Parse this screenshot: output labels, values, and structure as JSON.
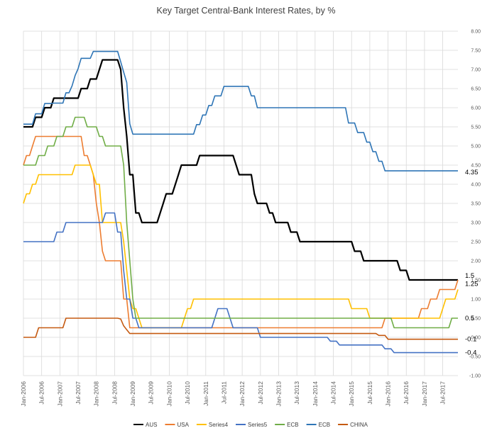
{
  "chart_data": {
    "type": "line",
    "title": "Key Target Central-Bank Interest Rates, by %",
    "xlabel": "",
    "ylabel": "",
    "x_range": [
      "Jan-2006",
      "Dec-2017"
    ],
    "ylim": [
      -1.0,
      8.0
    ],
    "y_ticks": [
      "-1.00",
      "-0.50",
      "0.00",
      "0.50",
      "1.00",
      "1.50",
      "2.00",
      "2.50",
      "3.00",
      "3.50",
      "4.00",
      "4.50",
      "5.00",
      "5.50",
      "6.00",
      "6.50",
      "7.00",
      "7.50",
      "8.00"
    ],
    "x_ticks": [
      "Jan-2006",
      "Jul-2006",
      "Jan-2007",
      "Jul-2007",
      "Jan-2008",
      "Jul-2008",
      "Jan-2009",
      "Jul-2009",
      "Jan-2010",
      "Jul-2010",
      "Jan-2011",
      "Jul-2011",
      "Jan-2012",
      "Jul-2012",
      "Jan-2013",
      "Jul-2013",
      "Jan-2014",
      "Jul-2014",
      "Jan-2015",
      "Jul-2015",
      "Jan-2016",
      "Jul-2016",
      "Jan-2017",
      "Jul-2017"
    ],
    "grid": true,
    "legend_position": "bottom",
    "series": [
      {
        "name": "AUS",
        "color": "#000000",
        "width": 2.2,
        "end_label": "1.5",
        "steps": [
          [
            "2006-01",
            5.5
          ],
          [
            "2006-05",
            5.75
          ],
          [
            "2006-08",
            6.0
          ],
          [
            "2006-11",
            6.25
          ],
          [
            "2007-08",
            6.5
          ],
          [
            "2007-11",
            6.75
          ],
          [
            "2008-02",
            7.0
          ],
          [
            "2008-03",
            7.25
          ],
          [
            "2008-09",
            7.0
          ],
          [
            "2008-10",
            6.0
          ],
          [
            "2008-11",
            5.25
          ],
          [
            "2008-12",
            4.25
          ],
          [
            "2009-02",
            3.25
          ],
          [
            "2009-04",
            3.0
          ],
          [
            "2009-10",
            3.25
          ],
          [
            "2009-11",
            3.5
          ],
          [
            "2009-12",
            3.75
          ],
          [
            "2010-03",
            4.0
          ],
          [
            "2010-04",
            4.25
          ],
          [
            "2010-05",
            4.5
          ],
          [
            "2010-11",
            4.75
          ],
          [
            "2011-11",
            4.5
          ],
          [
            "2011-12",
            4.25
          ],
          [
            "2012-05",
            3.75
          ],
          [
            "2012-06",
            3.5
          ],
          [
            "2012-10",
            3.25
          ],
          [
            "2012-12",
            3.0
          ],
          [
            "2013-05",
            2.75
          ],
          [
            "2013-08",
            2.5
          ],
          [
            "2015-02",
            2.25
          ],
          [
            "2015-05",
            2.0
          ],
          [
            "2016-05",
            1.75
          ],
          [
            "2016-08",
            1.5
          ]
        ]
      },
      {
        "name": "USA",
        "color": "#ed7d31",
        "width": 1.6,
        "end_label": "",
        "steps": [
          [
            "2006-01",
            4.5
          ],
          [
            "2006-02",
            4.75
          ],
          [
            "2006-04",
            5.0
          ],
          [
            "2006-05",
            5.25
          ],
          [
            "2007-09",
            4.75
          ],
          [
            "2007-11",
            4.5
          ],
          [
            "2007-12",
            4.25
          ],
          [
            "2008-01",
            3.5
          ],
          [
            "2008-02",
            3.0
          ],
          [
            "2008-03",
            2.25
          ],
          [
            "2008-04",
            2.0
          ],
          [
            "2008-10",
            1.0
          ],
          [
            "2008-12",
            0.25
          ],
          [
            "2015-12",
            0.5
          ],
          [
            "2016-12",
            0.75
          ],
          [
            "2017-03",
            1.0
          ],
          [
            "2017-06",
            1.25
          ],
          [
            "2017-12",
            1.5
          ]
        ]
      },
      {
        "name": "Series4",
        "color": "#ffc000",
        "width": 1.6,
        "end_label": "1.25",
        "steps": [
          [
            "2006-01",
            3.5
          ],
          [
            "2006-02",
            3.75
          ],
          [
            "2006-04",
            4.0
          ],
          [
            "2006-06",
            4.25
          ],
          [
            "2007-06",
            4.5
          ],
          [
            "2007-12",
            4.25
          ],
          [
            "2008-01",
            4.0
          ],
          [
            "2008-03",
            3.0
          ],
          [
            "2008-10",
            2.5
          ],
          [
            "2008-11",
            1.75
          ],
          [
            "2008-12",
            1.0
          ],
          [
            "2009-01",
            0.75
          ],
          [
            "2009-03",
            0.5
          ],
          [
            "2009-04",
            0.25
          ],
          [
            "2010-06",
            0.5
          ],
          [
            "2010-07",
            0.75
          ],
          [
            "2010-09",
            1.0
          ],
          [
            "2015-01",
            0.75
          ],
          [
            "2015-07",
            0.5
          ],
          [
            "2017-07",
            0.75
          ],
          [
            "2017-08",
            1.0
          ],
          [
            "2017-11",
            1.0
          ],
          [
            "2017-12",
            1.25
          ]
        ]
      },
      {
        "name": "Series5",
        "color": "#4472c4",
        "width": 1.6,
        "end_label": "-0.4",
        "steps": [
          [
            "2006-01",
            2.5
          ],
          [
            "2006-12",
            2.75
          ],
          [
            "2007-03",
            3.0
          ],
          [
            "2008-04",
            3.25
          ],
          [
            "2008-08",
            2.75
          ],
          [
            "2008-10",
            1.75
          ],
          [
            "2008-11",
            1.0
          ],
          [
            "2009-01",
            0.5
          ],
          [
            "2009-03",
            0.25
          ],
          [
            "2011-04",
            0.5
          ],
          [
            "2011-05",
            0.75
          ],
          [
            "2011-09",
            0.5
          ],
          [
            "2011-10",
            0.25
          ],
          [
            "2012-07",
            0.0
          ],
          [
            "2014-06",
            -0.1
          ],
          [
            "2014-09",
            -0.2
          ],
          [
            "2015-12",
            -0.3
          ],
          [
            "2016-03",
            -0.4
          ]
        ]
      },
      {
        "name": "ECB",
        "color": "#70ad47",
        "width": 1.6,
        "end_label": "0.5",
        "steps": [
          [
            "2006-01",
            4.5
          ],
          [
            "2006-06",
            4.75
          ],
          [
            "2006-09",
            5.0
          ],
          [
            "2006-12",
            5.25
          ],
          [
            "2007-03",
            5.5
          ],
          [
            "2007-06",
            5.75
          ],
          [
            "2007-10",
            5.5
          ],
          [
            "2008-02",
            5.25
          ],
          [
            "2008-04",
            5.0
          ],
          [
            "2008-10",
            4.5
          ],
          [
            "2008-11",
            3.0
          ],
          [
            "2008-12",
            2.0
          ],
          [
            "2009-01",
            1.0
          ],
          [
            "2009-02",
            0.5
          ],
          [
            "2016-03",
            0.25
          ],
          [
            "2017-10",
            0.5
          ]
        ]
      },
      {
        "name": "ECB",
        "color": "#2e75b6",
        "width": 1.6,
        "end_label": "4.35",
        "steps": [
          [
            "2006-01",
            5.57
          ],
          [
            "2006-05",
            5.84
          ],
          [
            "2006-08",
            6.11
          ],
          [
            "2006-11",
            6.12
          ],
          [
            "2007-03",
            6.39
          ],
          [
            "2007-05",
            6.57
          ],
          [
            "2007-06",
            6.84
          ],
          [
            "2007-07",
            7.02
          ],
          [
            "2007-08",
            7.29
          ],
          [
            "2007-12",
            7.47
          ],
          [
            "2008-09",
            7.2
          ],
          [
            "2008-10",
            6.93
          ],
          [
            "2008-11",
            6.66
          ],
          [
            "2008-12",
            5.58
          ],
          [
            "2009-01",
            5.31
          ],
          [
            "2010-10",
            5.56
          ],
          [
            "2010-12",
            5.81
          ],
          [
            "2011-02",
            6.06
          ],
          [
            "2011-04",
            6.31
          ],
          [
            "2011-07",
            6.56
          ],
          [
            "2012-04",
            6.31
          ],
          [
            "2012-06",
            6.0
          ],
          [
            "2014-12",
            5.6
          ],
          [
            "2015-03",
            5.35
          ],
          [
            "2015-06",
            5.1
          ],
          [
            "2015-08",
            4.85
          ],
          [
            "2015-10",
            4.6
          ],
          [
            "2015-12",
            4.35
          ]
        ]
      },
      {
        "name": "CHINA",
        "color": "#c55a11",
        "width": 1.6,
        "end_label": "-0.1",
        "steps": [
          [
            "2006-01",
            0.0
          ],
          [
            "2006-06",
            0.25
          ],
          [
            "2007-03",
            0.5
          ],
          [
            "2008-09",
            0.48
          ],
          [
            "2008-10",
            0.3
          ],
          [
            "2008-11",
            0.2
          ],
          [
            "2008-12",
            0.1
          ],
          [
            "2015-10",
            0.05
          ],
          [
            "2016-01",
            -0.05
          ],
          [
            "2017-12",
            -0.05
          ]
        ]
      }
    ]
  }
}
